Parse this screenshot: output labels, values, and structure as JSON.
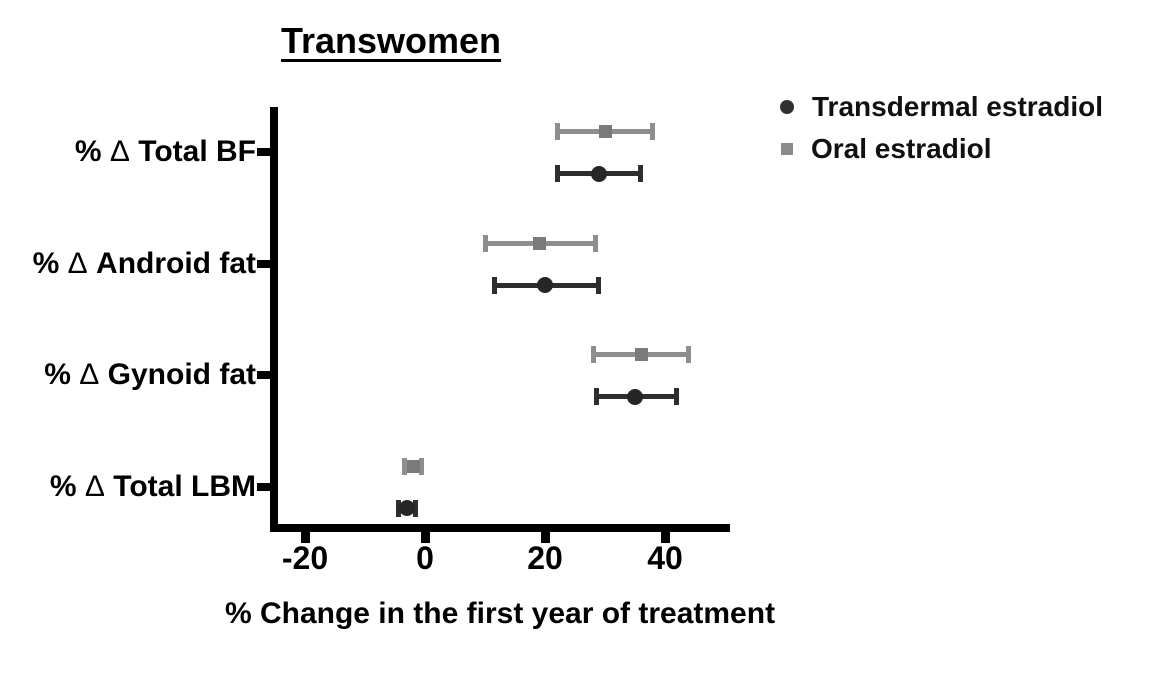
{
  "chart_data": {
    "type": "scatter",
    "title": "Transwomen",
    "xlabel": "% Change in the first year of treatment",
    "categories": [
      "% Δ Total BF",
      "% Δ Android fat",
      "% Δ Gynoid fat",
      "% Δ Total LBM"
    ],
    "xticks": [
      -20,
      0,
      20,
      40
    ],
    "xlim": [
      -24.5,
      50.8
    ],
    "grid": false,
    "legend_position": "top-right",
    "axis_color": "#000000",
    "series": [
      {
        "name": "Transdermal estradiol",
        "marker": "circle",
        "color": "#2e2e2e",
        "marker_color": "#262626",
        "points": [
          {
            "category": "% Δ Total BF",
            "mean": 29,
            "lo": 22,
            "hi": 36
          },
          {
            "category": "% Δ Android fat",
            "mean": 20,
            "lo": 11.5,
            "hi": 29
          },
          {
            "category": "% Δ Gynoid fat",
            "mean": 35,
            "lo": 28.5,
            "hi": 42
          },
          {
            "category": "% Δ Total LBM",
            "mean": -3,
            "lo": -4.5,
            "hi": -1.5
          }
        ]
      },
      {
        "name": "Oral estradiol",
        "marker": "square",
        "color": "#8e8e8e",
        "marker_color": "#7a7a7a",
        "points": [
          {
            "category": "% Δ Total BF",
            "mean": 30,
            "lo": 22,
            "hi": 38
          },
          {
            "category": "% Δ Android fat",
            "mean": 19,
            "lo": 10,
            "hi": 28.5
          },
          {
            "category": "% Δ Gynoid fat",
            "mean": 36,
            "lo": 28,
            "hi": 44
          },
          {
            "category": "% Δ Total LBM",
            "mean": -2,
            "lo": -3.5,
            "hi": -0.5
          }
        ]
      }
    ]
  }
}
